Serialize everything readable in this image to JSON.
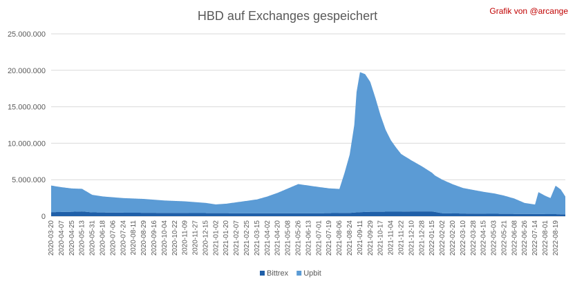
{
  "chart_data": {
    "type": "area",
    "stacked": true,
    "title": "HBD auf Exchanges gespeichert",
    "credit": "Grafik von @arcange",
    "xlabel": "",
    "ylabel": "",
    "ylim": [
      0,
      25000000
    ],
    "y_ticks": [
      "0",
      "5.000.000",
      "10.000.000",
      "15.000.000",
      "20.000.000",
      "25.000.000"
    ],
    "grid": "horizontal",
    "legend_position": "bottom",
    "x_ticks": [
      "2020-03-20",
      "2020-04-07",
      "2020-04-25",
      "2020-05-13",
      "2020-05-31",
      "2020-06-18",
      "2020-07-06",
      "2020-07-24",
      "2020-08-11",
      "2020-08-29",
      "2020-09-16",
      "2020-10-04",
      "2020-10-22",
      "2020-11-09",
      "2020-11-27",
      "2020-12-15",
      "2021-01-02",
      "2021-01-20",
      "2021-02-07",
      "2021-02-25",
      "2021-03-15",
      "2021-04-02",
      "2021-04-20",
      "2021-05-08",
      "2021-05-26",
      "2021-06-13",
      "2021-07-01",
      "2021-07-19",
      "2021-08-06",
      "2021-08-24",
      "2021-09-11",
      "2021-09-29",
      "2021-10-17",
      "2021-11-04",
      "2021-11-22",
      "2021-12-10",
      "2021-12-28",
      "2022-01-15",
      "2022-02-02",
      "2022-02-20",
      "2022-03-10",
      "2022-03-28",
      "2022-04-15",
      "2022-05-03",
      "2022-05-21",
      "2022-06-08",
      "2022-06-26",
      "2022-07-14",
      "2022-08-01",
      "2022-08-19"
    ],
    "x_tick_labels": [
      "2020-03-20",
      "2020-04-07",
      "2020-04-25",
      "2020-05-13",
      "2020-05-31",
      "2020-06-18",
      "2020-07-06",
      "2020-07-24",
      "2020-08-11",
      "2020-08-29",
      "2020-09-16",
      "2020-10-04",
      "2020-10-22",
      "2020-11-09",
      "2020-11-27",
      "2020-12-15",
      "2021-01-02",
      "2021-01-20",
      "2021-02-07",
      "2021-02-25",
      "2021-03-15",
      "2021-04-02",
      "2021-04-20",
      "2021-05-08",
      "2021-05-26",
      "2021-06-13",
      "2021-07-01",
      "2021-07-19",
      "2021-08-06",
      "2021-08-24",
      "2021-09-11",
      "2021-09-29",
      "2021-10-17",
      "2021-11-04",
      "2021-11-22",
      "2021-12-10",
      "2021-12-28",
      "2022-01-15",
      "2022-02-02",
      "2022-02-20",
      "2022-03-10",
      "2022-03-28",
      "2022-04-15",
      "2022-05-03",
      "2022-05-21",
      "2022-06-08",
      "2022-06-26",
      "2022-07-14",
      "2022-08-01",
      "2022-08-19"
    ],
    "series": [
      {
        "name": "Bittrex",
        "color": "#1f5fa8",
        "x": [
          "2020-03-20",
          "2020-04-25",
          "2020-05-13",
          "2020-05-31",
          "2020-07-24",
          "2020-10-04",
          "2020-12-15",
          "2021-02-25",
          "2021-05-08",
          "2021-07-01",
          "2021-08-24",
          "2021-09-11",
          "2021-09-29",
          "2021-11-22",
          "2021-12-10",
          "2022-01-15",
          "2022-02-02",
          "2022-03-28",
          "2022-05-21",
          "2022-07-14",
          "2022-08-19",
          "2022-09-05"
        ],
        "values": [
          550000,
          600000,
          650000,
          520000,
          480000,
          450000,
          420000,
          400000,
          400000,
          400000,
          450000,
          550000,
          600000,
          620000,
          650000,
          650000,
          400000,
          350000,
          320000,
          300000,
          280000,
          250000
        ]
      },
      {
        "name": "Upbit",
        "color": "#5b9bd5",
        "x": [
          "2020-03-20",
          "2020-04-07",
          "2020-04-25",
          "2020-05-13",
          "2020-05-31",
          "2020-06-18",
          "2020-07-24",
          "2020-08-29",
          "2020-10-04",
          "2020-11-09",
          "2020-12-15",
          "2021-01-02",
          "2021-01-20",
          "2021-02-07",
          "2021-02-25",
          "2021-03-15",
          "2021-04-02",
          "2021-04-20",
          "2021-05-08",
          "2021-05-26",
          "2021-06-13",
          "2021-07-01",
          "2021-07-19",
          "2021-08-06",
          "2021-08-15",
          "2021-08-24",
          "2021-09-01",
          "2021-09-05",
          "2021-09-11",
          "2021-09-20",
          "2021-09-29",
          "2021-10-08",
          "2021-10-17",
          "2021-10-26",
          "2021-11-04",
          "2021-11-13",
          "2021-11-22",
          "2021-12-10",
          "2021-12-28",
          "2022-01-15",
          "2022-01-20",
          "2022-02-02",
          "2022-02-20",
          "2022-03-10",
          "2022-03-28",
          "2022-04-15",
          "2022-05-03",
          "2022-05-21",
          "2022-06-08",
          "2022-06-26",
          "2022-07-14",
          "2022-07-20",
          "2022-08-01",
          "2022-08-10",
          "2022-08-19",
          "2022-08-28",
          "2022-09-05"
        ],
        "values": [
          3650000,
          3400000,
          3200000,
          3100000,
          2400000,
          2200000,
          2000000,
          1900000,
          1700000,
          1600000,
          1400000,
          1200000,
          1300000,
          1500000,
          1700000,
          1900000,
          2300000,
          2800000,
          3400000,
          4000000,
          3800000,
          3600000,
          3400000,
          3300000,
          5500000,
          8000000,
          12000000,
          16500000,
          19200000,
          18900000,
          17800000,
          15600000,
          13200000,
          11200000,
          9800000,
          8800000,
          7900000,
          7000000,
          6200000,
          5300000,
          5000000,
          4600000,
          4000000,
          3500000,
          3250000,
          3000000,
          2800000,
          2500000,
          2100000,
          1500000,
          1300000,
          3000000,
          2500000,
          2200000,
          3900000,
          3400000,
          2450000
        ]
      }
    ]
  }
}
